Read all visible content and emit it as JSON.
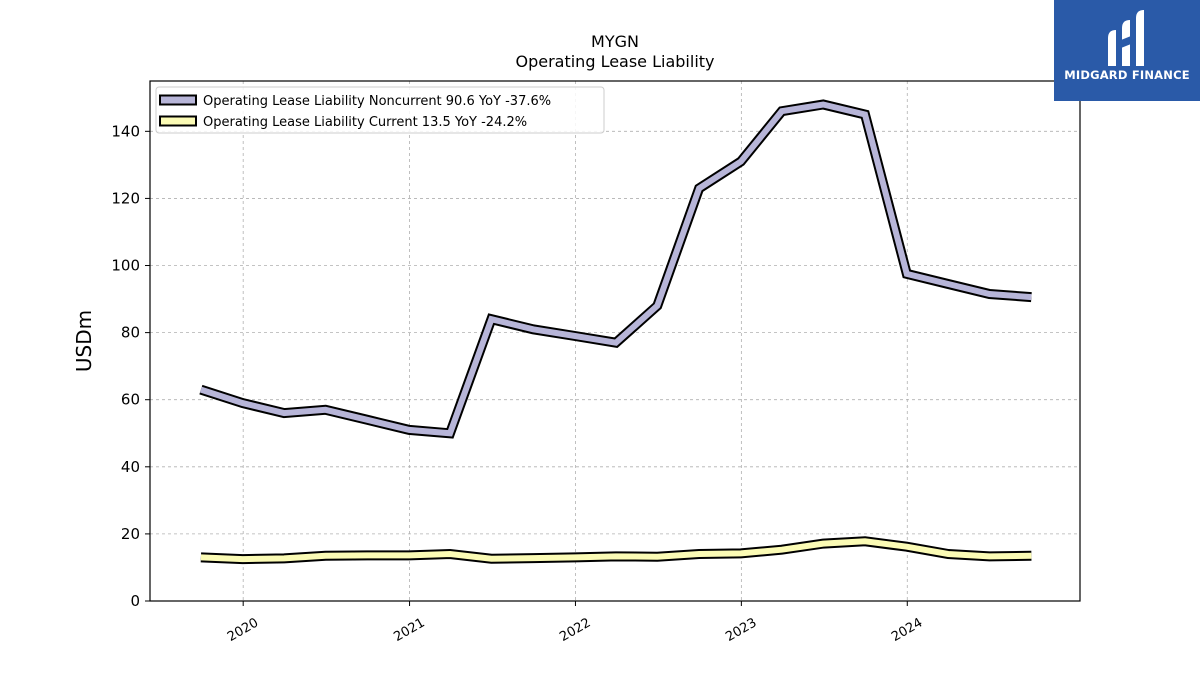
{
  "chart_data": {
    "type": "line",
    "title": "MYGN",
    "subtitle": "Operating Lease Liability",
    "ylabel": "USDm",
    "xlabel": "",
    "ylim": [
      0,
      155
    ],
    "yticks": [
      0,
      20,
      40,
      60,
      80,
      100,
      120,
      140
    ],
    "xlim": [
      "2019-06-10",
      "2025-01-15"
    ],
    "xticks": [
      "2020",
      "2021",
      "2022",
      "2023",
      "2024"
    ],
    "grid": true,
    "legend_position": "top-left",
    "x": [
      "2019-09-30",
      "2019-12-31",
      "2020-03-31",
      "2020-06-30",
      "2020-09-30",
      "2020-12-31",
      "2021-03-31",
      "2021-06-30",
      "2021-09-30",
      "2021-12-31",
      "2022-03-31",
      "2022-06-30",
      "2022-09-30",
      "2022-12-31",
      "2023-03-31",
      "2023-06-30",
      "2023-09-30",
      "2023-12-31",
      "2024-03-31",
      "2024-06-30",
      "2024-09-30"
    ],
    "series": [
      {
        "name": "Operating Lease Liability Noncurrent",
        "legend_label": "Operating Lease Liability Noncurrent  90.6 YoY -37.6%",
        "color": "#b7b5d8",
        "values": [
          63,
          59,
          56,
          57,
          54,
          51,
          50,
          84,
          81,
          79,
          77,
          88,
          123,
          131,
          146,
          148,
          145,
          97.5,
          94.5,
          91.5,
          90.6
        ]
      },
      {
        "name": "Operating Lease Liability Current",
        "legend_label": "Operating Lease Liability Current  13.5 YoY -24.2%",
        "color": "#fbfbb5",
        "values": [
          13,
          12.5,
          12.7,
          13.5,
          13.6,
          13.6,
          14,
          12.6,
          12.8,
          13,
          13.3,
          13.2,
          14,
          14.2,
          15.3,
          17.1,
          17.8,
          16.2,
          14,
          13.3,
          13.5
        ]
      }
    ]
  },
  "logo": {
    "text": "MIDGARD FINANCE",
    "background": "#2a5aa8"
  }
}
